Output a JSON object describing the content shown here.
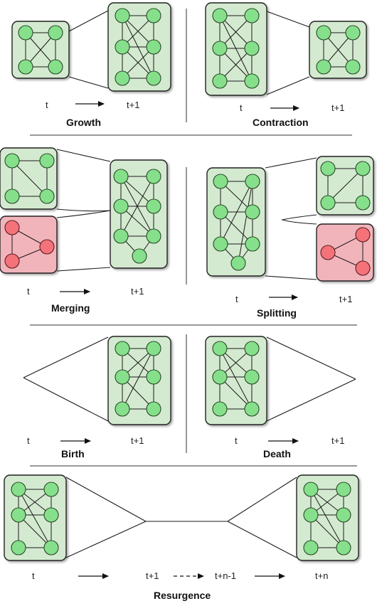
{
  "panels": {
    "growth": {
      "title": "Growth",
      "t_from": "t",
      "t_to": "t+1"
    },
    "contraction": {
      "title": "Contraction",
      "t_from": "t",
      "t_to": "t+1"
    },
    "merging": {
      "title": "Merging",
      "t_from": "t",
      "t_to": "t+1"
    },
    "splitting": {
      "title": "Splitting",
      "t_from": "t",
      "t_to": "t+1"
    },
    "birth": {
      "title": "Birth",
      "t_from": "t",
      "t_to": "t+1"
    },
    "death": {
      "title": "Death",
      "t_from": "t",
      "t_to": "t+1"
    },
    "resurgence": {
      "title": "Resurgence",
      "t_from": "t",
      "t_mid1": "t+1",
      "t_mid2": "t+n-1",
      "t_to": "t+n"
    }
  },
  "colors": {
    "community_green_fill": "#d4ead0",
    "community_red_fill": "#f2b4bb",
    "node_green": "#86e08b",
    "node_red": "#f4737a"
  }
}
